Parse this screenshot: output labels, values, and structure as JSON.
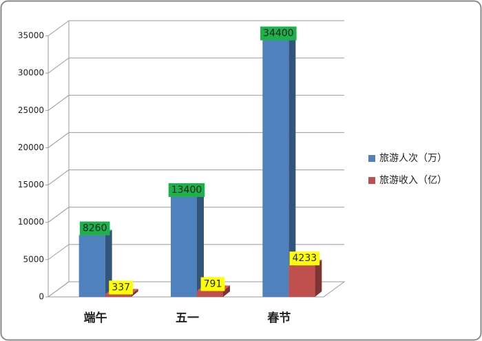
{
  "chart_data": {
    "type": "bar3d",
    "categories": [
      "端午",
      "五一",
      "春节"
    ],
    "series": [
      {
        "name": "旅游人次（万）",
        "color": "#4f81bd",
        "values": [
          8260,
          13400,
          34400
        ]
      },
      {
        "name": "旅游收入（亿）",
        "color": "#c0504d",
        "values": [
          337,
          791,
          4233
        ]
      }
    ],
    "ylim": [
      0,
      35000
    ],
    "yticks": [
      0,
      5000,
      10000,
      15000,
      20000,
      25000,
      30000,
      35000
    ],
    "grid": true,
    "legend": "right"
  }
}
